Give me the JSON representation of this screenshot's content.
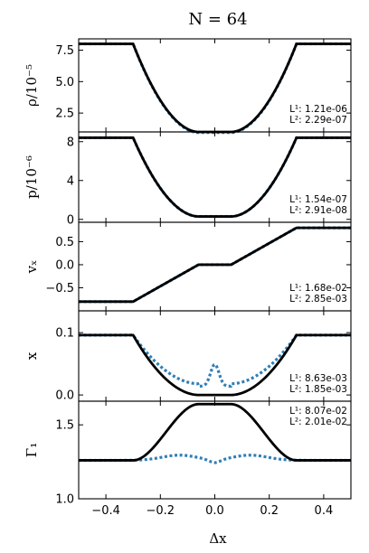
{
  "figure": {
    "title": "N = 64",
    "xlabel": "Δx",
    "colors": {
      "exact": "#000000",
      "numerical": "#2f7fb5"
    }
  },
  "chart_data": [
    {
      "type": "line",
      "ylabel": "ρ/10⁻⁵",
      "ylim": [
        1.0,
        8.4
      ],
      "yticks": [
        2.5,
        5.0,
        7.5
      ],
      "ytick_labels": [
        "2.5",
        "5.0",
        "7.5"
      ],
      "xlim": [
        -0.5,
        0.5
      ],
      "shape": "valley",
      "series": [
        {
          "role": "exact",
          "params": {
            "outer": 8.0,
            "inner": 1.0,
            "x_edge": 0.3,
            "x_core": 0.06
          }
        },
        {
          "role": "numerical",
          "params": {
            "outer": 8.0,
            "inner": 0.95,
            "x_edge": 0.3,
            "x_core": 0.06
          }
        }
      ],
      "errors": {
        "L1": "1.21e-06",
        "L2": "2.29e-07"
      }
    },
    {
      "type": "line",
      "ylabel": "p/10⁻⁶",
      "ylim": [
        -0.3,
        9.0
      ],
      "yticks": [
        0,
        4,
        8
      ],
      "ytick_labels": [
        "0",
        "4",
        "8"
      ],
      "xlim": [
        -0.5,
        0.5
      ],
      "shape": "valley",
      "series": [
        {
          "role": "exact",
          "params": {
            "outer": 8.4,
            "inner": 0.3,
            "x_edge": 0.3,
            "x_core": 0.06
          }
        },
        {
          "role": "numerical",
          "params": {
            "outer": 8.4,
            "inner": 0.3,
            "x_edge": 0.3,
            "x_core": 0.06
          }
        }
      ],
      "errors": {
        "L1": "1.54e-07",
        "L2": "2.91e-08"
      }
    },
    {
      "type": "line",
      "ylabel": "vₓ",
      "ylim": [
        -1.0,
        0.92
      ],
      "yticks": [
        -0.5,
        0.0,
        0.5
      ],
      "ytick_labels": [
        "−0.5",
        "0.0",
        "0.5"
      ],
      "xlim": [
        -0.5,
        0.5
      ],
      "shape": "ramp",
      "series": [
        {
          "role": "exact",
          "params": {
            "amp": 0.8,
            "x_edge": 0.3,
            "x_core": 0.06
          }
        },
        {
          "role": "numerical",
          "params": {
            "amp": 0.8,
            "x_edge": 0.3,
            "x_core": 0.06
          }
        }
      ],
      "errors": {
        "L1": "1.68e-02",
        "L2": "2.85e-03"
      }
    },
    {
      "type": "line",
      "ylabel": "x",
      "ylim": [
        -0.01,
        0.135
      ],
      "yticks": [
        0.0,
        0.1
      ],
      "ytick_labels": [
        "0.0",
        "0.1"
      ],
      "xlim": [
        -0.5,
        0.5
      ],
      "shape": "valley",
      "series": [
        {
          "role": "exact",
          "params": {
            "outer": 0.096,
            "inner": 0.0,
            "x_edge": 0.3,
            "x_core": 0.06
          }
        },
        {
          "role": "numerical",
          "params": {
            "outer": 0.096,
            "inner": 0.018,
            "x_edge": 0.3,
            "x_core": 0.06,
            "bump": 0.031
          }
        }
      ],
      "errors": {
        "L1": "8.63e-03",
        "L2": "1.85e-03"
      }
    },
    {
      "type": "line",
      "ylabel": "Γ₁",
      "ylim": [
        1.0,
        1.66
      ],
      "yticks": [
        1.0,
        1.5
      ],
      "ytick_labels": [
        "1.0",
        "1.5"
      ],
      "xlim": [
        -0.5,
        0.5
      ],
      "xticks": [
        -0.4,
        -0.2,
        0.0,
        0.2,
        0.4
      ],
      "xtick_labels": [
        "−0.4",
        "−0.2",
        "0.0",
        "0.2",
        "0.4"
      ],
      "shape": "plateau",
      "series": [
        {
          "role": "exact",
          "params": {
            "base": 1.26,
            "top": 1.64,
            "x_edge": 0.3,
            "x_core": 0.06
          }
        },
        {
          "role": "numerical",
          "params": {
            "base": 1.26,
            "bump": 0.035,
            "dip": 1.24
          }
        }
      ],
      "errors": {
        "L1": "8.07e-02",
        "L2": "2.01e-02"
      }
    }
  ]
}
